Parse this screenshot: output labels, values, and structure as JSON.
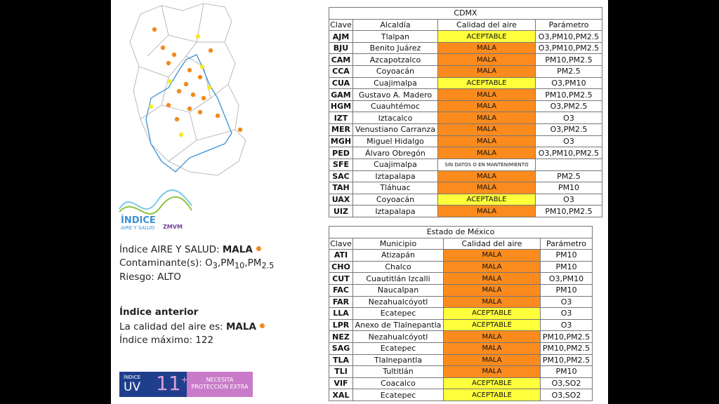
{
  "left": {
    "logo": {
      "line1": "ÍNDICE",
      "line2": "AIRE Y SALUD",
      "brand": "ZMVM"
    },
    "index_label": "Índice AIRE Y SALUD: ",
    "index_value": "MALA",
    "contaminants_label": "Contaminante(s): ",
    "contaminants": [
      [
        "O",
        "3"
      ],
      [
        "PM",
        "10"
      ],
      [
        "PM",
        "2.5"
      ]
    ],
    "separator": ",",
    "risk": "Riesgo: ALTO",
    "previous_title": "Índice anterior",
    "previous_label": "La calidad del aire es: ",
    "previous_value": "MALA",
    "max": "Índice máximo: 122",
    "uv": {
      "line1": "ÍNDICE",
      "line2": "UV",
      "value": "11",
      "sup": "+",
      "message": "NECESITA PROTECCIÓN EXTRA"
    }
  },
  "quality_colors": {
    "MALA": "#fb8b1d",
    "ACEPTABLE": "#ffff3b"
  },
  "cdmx": {
    "title": "CDMX",
    "headers": [
      "Clave",
      "Alcaldía",
      "Calidad del aire",
      "Parámetro"
    ],
    "rows": [
      [
        "AJM",
        "Tlalpan",
        "ACEPTABLE",
        "O3,PM10,PM2.5"
      ],
      [
        "BJU",
        "Benito Juárez",
        "MALA",
        "O3,PM10,PM2.5"
      ],
      [
        "CAM",
        "Azcapotzalco",
        "MALA",
        "PM10,PM2.5"
      ],
      [
        "CCA",
        "Coyoacán",
        "MALA",
        "PM2.5"
      ],
      [
        "CUA",
        "Cuajimalpa",
        "ACEPTABLE",
        "O3,PM10"
      ],
      [
        "GAM",
        "Gustavo A. Madero",
        "MALA",
        "PM10,PM2.5"
      ],
      [
        "HGM",
        "Cuauhtémoc",
        "MALA",
        "O3,PM2.5"
      ],
      [
        "IZT",
        "Iztacalco",
        "MALA",
        "O3"
      ],
      [
        "MER",
        "Venustiano Carranza",
        "MALA",
        "O3,PM2.5"
      ],
      [
        "MGH",
        "Miguel Hidalgo",
        "MALA",
        "O3"
      ],
      [
        "PED",
        "Álvaro Obregón",
        "MALA",
        "O3,PM10,PM2.5"
      ],
      [
        "SFE",
        "Cuajimalpa",
        "SIN DATOS O EN MANTENIMIENTO",
        ""
      ],
      [
        "SAC",
        "Iztapalapa",
        "MALA",
        "PM2.5"
      ],
      [
        "TAH",
        "Tláhuac",
        "MALA",
        "PM10"
      ],
      [
        "UAX",
        "Coyoacán",
        "ACEPTABLE",
        "O3"
      ],
      [
        "UIZ",
        "Iztapalapa",
        "MALA",
        "PM10,PM2.5"
      ]
    ]
  },
  "edomex": {
    "title": "Estado de México",
    "headers": [
      "Clave",
      "Municipio",
      "Calidad del aire",
      "Parámetro"
    ],
    "rows": [
      [
        "ATI",
        "Atizapán",
        "MALA",
        "PM10"
      ],
      [
        "CHO",
        "Chalco",
        "MALA",
        "PM10"
      ],
      [
        "CUT",
        "Cuautitlán Izcalli",
        "MALA",
        "O3,PM10"
      ],
      [
        "FAC",
        "Naucalpan",
        "MALA",
        "PM10"
      ],
      [
        "FAR",
        "Nezahualcóyotl",
        "MALA",
        "O3"
      ],
      [
        "LLA",
        "Ecatepec",
        "ACEPTABLE",
        "O3"
      ],
      [
        "LPR",
        "Anexo de Tlalnepantla",
        "ACEPTABLE",
        "O3"
      ],
      [
        "NEZ",
        "Nezahualcóyotl",
        "MALA",
        "PM10,PM2.5"
      ],
      [
        "SAG",
        "Ecatepec",
        "MALA",
        "PM10,PM2.5"
      ],
      [
        "TLA",
        "Tlalnepantla",
        "MALA",
        "PM10,PM2.5"
      ],
      [
        "TLI",
        "Tultitlán",
        "MALA",
        "PM10"
      ],
      [
        "VIF",
        "Coacalco",
        "ACEPTABLE",
        "O3,SO2"
      ],
      [
        "XAL",
        "Ecatepec",
        "ACEPTABLE",
        "O3,SO2"
      ]
    ]
  }
}
